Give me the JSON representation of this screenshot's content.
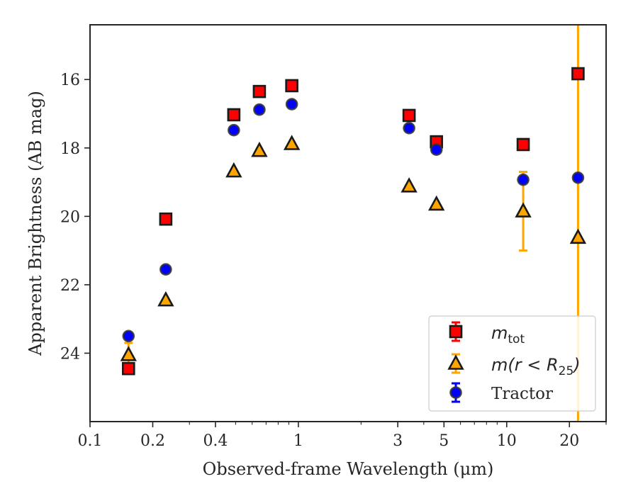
{
  "chart_data": {
    "type": "scatter",
    "xlabel": "Observed-frame Wavelength (μm)",
    "ylabel": "Apparent Brightness (AB mag)",
    "xscale": "log",
    "xlim": [
      0.1,
      30
    ],
    "ylim": [
      26.0,
      14.4
    ],
    "y_inverted": true,
    "xticks": [
      {
        "value": 0.1,
        "label": "0.1"
      },
      {
        "value": 0.2,
        "label": "0.2"
      },
      {
        "value": 0.4,
        "label": "0.4"
      },
      {
        "value": 1,
        "label": "1"
      },
      {
        "value": 3,
        "label": "3"
      },
      {
        "value": 5,
        "label": "5"
      },
      {
        "value": 10,
        "label": "10"
      },
      {
        "value": 20,
        "label": "20"
      }
    ],
    "yticks": [
      {
        "value": 16,
        "label": "16"
      },
      {
        "value": 18,
        "label": "18"
      },
      {
        "value": 20,
        "label": "20"
      },
      {
        "value": 22,
        "label": "22"
      },
      {
        "value": 24,
        "label": "24"
      }
    ],
    "legend_position": "lower right",
    "series": [
      {
        "name": "m_tot",
        "marker": "square",
        "fill": "#ff0000",
        "error_color": "#ff0000",
        "points": [
          {
            "x": 0.153,
            "y": 24.45,
            "err": 0
          },
          {
            "x": 0.231,
            "y": 20.08,
            "err": 0
          },
          {
            "x": 0.49,
            "y": 17.03,
            "err": 0
          },
          {
            "x": 0.65,
            "y": 16.35,
            "err": 0
          },
          {
            "x": 0.93,
            "y": 16.18,
            "err": 0
          },
          {
            "x": 3.4,
            "y": 17.05,
            "err": 0
          },
          {
            "x": 4.6,
            "y": 17.82,
            "err": 0
          },
          {
            "x": 12.0,
            "y": 17.9,
            "err": 0
          },
          {
            "x": 22.0,
            "y": 15.83,
            "err": 0
          }
        ]
      },
      {
        "name": "m(r < R25)",
        "marker": "triangle",
        "fill": "#ffa500",
        "error_color": "#ffa500",
        "points": [
          {
            "x": 0.153,
            "y": 24.05,
            "err": 0.35
          },
          {
            "x": 0.231,
            "y": 22.45,
            "err": 0
          },
          {
            "x": 0.49,
            "y": 18.68,
            "err": 0
          },
          {
            "x": 0.65,
            "y": 18.08,
            "err": 0
          },
          {
            "x": 0.93,
            "y": 17.88,
            "err": 0
          },
          {
            "x": 3.4,
            "y": 19.12,
            "err": 0
          },
          {
            "x": 4.6,
            "y": 19.65,
            "err": 0
          },
          {
            "x": 12.0,
            "y": 19.85,
            "err": 1.15
          },
          {
            "x": 22.0,
            "y": 20.62,
            "err": 30
          }
        ]
      },
      {
        "name": "Tractor",
        "marker": "circle",
        "fill": "#0000ff",
        "error_color": "#0000ff",
        "points": [
          {
            "x": 0.153,
            "y": 23.5,
            "err": 0
          },
          {
            "x": 0.231,
            "y": 21.55,
            "err": 0
          },
          {
            "x": 0.49,
            "y": 17.48,
            "err": 0
          },
          {
            "x": 0.65,
            "y": 16.88,
            "err": 0
          },
          {
            "x": 0.93,
            "y": 16.72,
            "err": 0
          },
          {
            "x": 3.4,
            "y": 17.42,
            "err": 0
          },
          {
            "x": 4.6,
            "y": 18.05,
            "err": 0
          },
          {
            "x": 12.0,
            "y": 18.93,
            "err": 0
          },
          {
            "x": 22.0,
            "y": 18.87,
            "err": 0
          }
        ]
      }
    ]
  }
}
